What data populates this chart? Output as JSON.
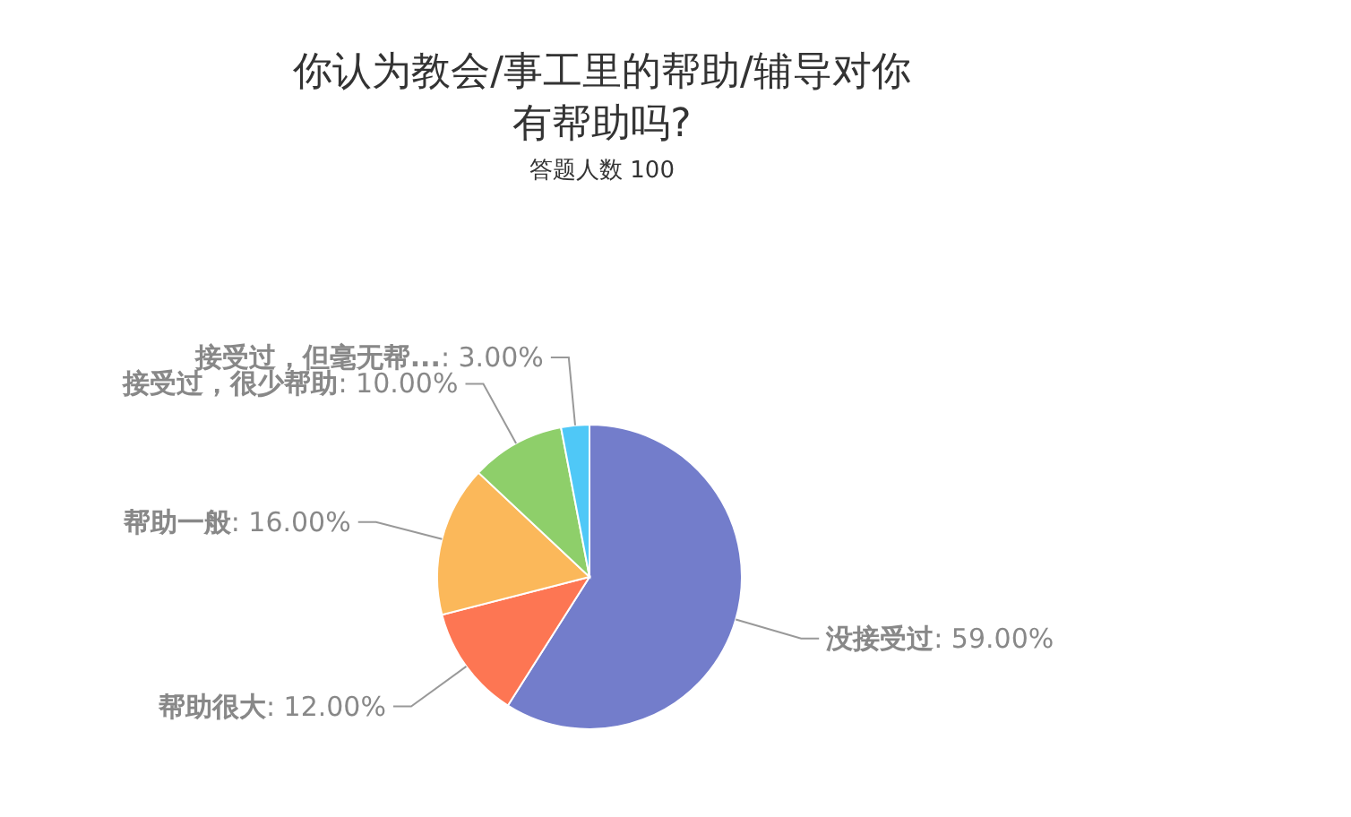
{
  "chart_data": {
    "type": "pie",
    "title": "你认为教会/事工里的帮助/辅导对你有帮助吗?",
    "subtitle": "答题人数 100",
    "categories": [
      "没接受过",
      "帮助很大",
      "帮助一般",
      "接受过，很少帮助",
      "接受过，但毫无帮..."
    ],
    "values": [
      59,
      12,
      16,
      10,
      3
    ],
    "value_labels": [
      ": 59.00%",
      ": 12.00%",
      ": 16.00%",
      ": 10.00%",
      ": 3.00%"
    ],
    "colors": [
      "#737dcb",
      "#fd7653",
      "#fbb85a",
      "#8ecf6a",
      "#4fc8f7"
    ],
    "legend": false
  }
}
